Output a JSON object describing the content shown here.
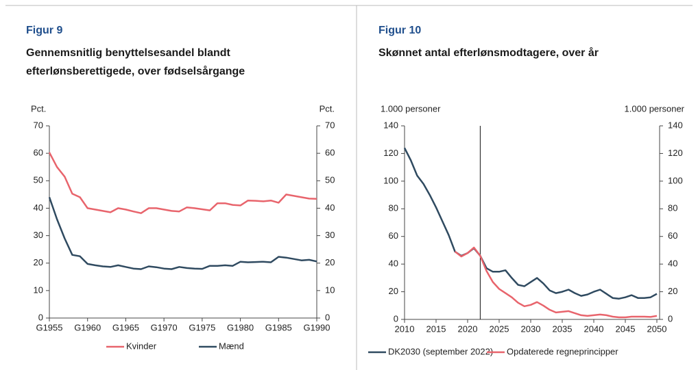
{
  "chart_data": [
    {
      "type": "line",
      "figure": "Figur 9",
      "title": "Gennemsnitlig benyttelsesandel blandt efterlønsberettigede, over fødselsårgange",
      "ylabel": "Pct.",
      "y2label": "Pct.",
      "x": [
        1955,
        1956,
        1957,
        1958,
        1959,
        1960,
        1961,
        1962,
        1963,
        1964,
        1965,
        1966,
        1967,
        1968,
        1969,
        1970,
        1971,
        1972,
        1973,
        1974,
        1975,
        1976,
        1977,
        1978,
        1979,
        1980,
        1981,
        1982,
        1983,
        1984,
        1985,
        1986,
        1987,
        1988,
        1989,
        1990
      ],
      "xlim": [
        1955,
        1990
      ],
      "xticks": [
        {
          "value": 1955,
          "label": "G1955"
        },
        {
          "value": 1960,
          "label": "G1960"
        },
        {
          "value": 1965,
          "label": "G1965"
        },
        {
          "value": 1970,
          "label": "G1970"
        },
        {
          "value": 1975,
          "label": "G1975"
        },
        {
          "value": 1980,
          "label": "G1980"
        },
        {
          "value": 1985,
          "label": "G1985"
        },
        {
          "value": 1990,
          "label": "G1990"
        }
      ],
      "ylim": [
        0,
        70
      ],
      "yticks": [
        0,
        10,
        20,
        30,
        40,
        50,
        60,
        70
      ],
      "y2lim": [
        0,
        70
      ],
      "y2ticks": [
        0,
        10,
        20,
        30,
        40,
        50,
        60,
        70
      ],
      "series": [
        {
          "name": "Kvinder",
          "color": "#e8646c",
          "values": [
            60.3,
            55,
            51.5,
            45.3,
            44,
            40,
            39.5,
            39,
            38.5,
            40,
            39.5,
            38.8,
            38.2,
            40,
            40,
            39.5,
            39,
            38.8,
            40.3,
            40,
            39.6,
            39.2,
            41.8,
            41.8,
            41.2,
            41,
            42.8,
            42.7,
            42.5,
            42.8,
            42,
            45,
            44.5,
            44,
            43.5,
            43.4
          ]
        },
        {
          "name": "Mænd",
          "color": "#2f4a60",
          "values": [
            44,
            36,
            29,
            23,
            22.5,
            19.7,
            19.2,
            18.8,
            18.6,
            19.2,
            18.6,
            18,
            17.8,
            18.8,
            18.5,
            18,
            17.8,
            18.6,
            18.2,
            18,
            17.9,
            19,
            19,
            19.2,
            19,
            20.5,
            20.3,
            20.4,
            20.5,
            20.3,
            22.3,
            22,
            21.5,
            21,
            21.2,
            20.6
          ]
        }
      ]
    },
    {
      "type": "line",
      "figure": "Figur 10",
      "title": "Skønnet antal efterlønsmodtagere, over år",
      "ylabel": "1.000 personer",
      "y2label": "1.000 personer",
      "x": [
        2010,
        2011,
        2012,
        2013,
        2014,
        2015,
        2016,
        2017,
        2018,
        2019,
        2020,
        2021,
        2022,
        2023,
        2024,
        2025,
        2026,
        2027,
        2028,
        2029,
        2030,
        2031,
        2032,
        2033,
        2034,
        2035,
        2036,
        2037,
        2038,
        2039,
        2040,
        2041,
        2042,
        2043,
        2044,
        2045,
        2046,
        2047,
        2048,
        2049,
        2050
      ],
      "xlim": [
        2010,
        2050
      ],
      "xticks": [
        2010,
        2015,
        2020,
        2025,
        2030,
        2035,
        2040,
        2045,
        2050
      ],
      "ylim": [
        0,
        140
      ],
      "yticks": [
        0,
        20,
        40,
        60,
        80,
        100,
        120,
        140
      ],
      "y2lim": [
        0,
        140
      ],
      "y2ticks": [
        0,
        20,
        40,
        60,
        80,
        100,
        120,
        140
      ],
      "vertical_line": 2022,
      "series": [
        {
          "name": "DK2030 (september 2022)",
          "color": "#2f4a60",
          "values": [
            124,
            115,
            104,
            98,
            90,
            81,
            71,
            61,
            49,
            46,
            48,
            51.5,
            46,
            37,
            34.5,
            34.5,
            35.5,
            30,
            25,
            24,
            27,
            30,
            26,
            21,
            19,
            20,
            21.5,
            19,
            17,
            18,
            20,
            21.5,
            18.5,
            15.5,
            15,
            16,
            17.5,
            15.5,
            15.5,
            16,
            18.5
          ]
        },
        {
          "name": "Opdaterede regneprincipper",
          "color": "#e8646c",
          "values": [
            null,
            null,
            null,
            null,
            null,
            null,
            null,
            null,
            49,
            45.5,
            48,
            52,
            46,
            35,
            27,
            22,
            19,
            16,
            12,
            9.5,
            10.5,
            12.5,
            10,
            7,
            5,
            5.5,
            6,
            4.5,
            3,
            2.5,
            3,
            3.5,
            3,
            2,
            1.5,
            1.5,
            2,
            2,
            2,
            1.8,
            2.5
          ]
        }
      ]
    }
  ]
}
